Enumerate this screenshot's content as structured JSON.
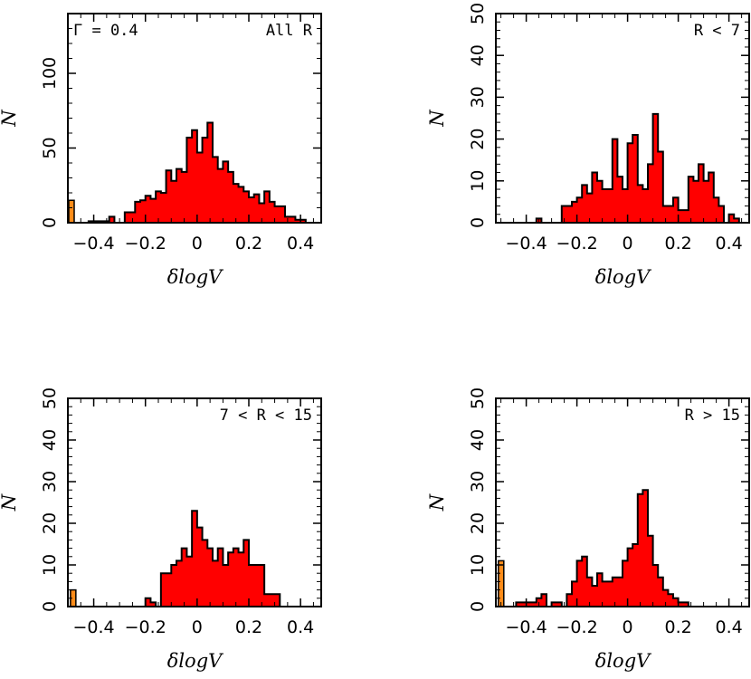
{
  "colors": {
    "bar_fill": "#ff0000",
    "outlier_fill": "#ff8c1a",
    "stroke": "#000000",
    "background": "#ffffff"
  },
  "chart_data": [
    {
      "type": "bar",
      "panel": "top-left",
      "annotation_left": "Γ = 0.4",
      "annotation_right": "All R",
      "xlabel": "δlogV",
      "ylabel": "N",
      "xlim": [
        -0.5,
        0.48
      ],
      "ylim": [
        0,
        140
      ],
      "xticks": [
        -0.4,
        -0.2,
        0,
        0.2,
        0.4
      ],
      "xtick_labels": [
        "−0.4",
        "−0.2",
        "0",
        "0.2",
        "0.4"
      ],
      "yticks": [
        0,
        50,
        100
      ],
      "ytick_labels": [
        "0",
        "50",
        "100"
      ],
      "bin_width": 0.02,
      "bins_start": [
        -0.44,
        -0.42,
        -0.4,
        -0.38,
        -0.36,
        -0.34,
        -0.32,
        -0.3,
        -0.28,
        -0.26,
        -0.24,
        -0.22,
        -0.2,
        -0.18,
        -0.16,
        -0.14,
        -0.12,
        -0.1,
        -0.08,
        -0.06,
        -0.04,
        -0.02,
        0.0,
        0.02,
        0.04,
        0.06,
        0.08,
        0.1,
        0.12,
        0.14,
        0.16,
        0.18,
        0.2,
        0.22,
        0.24,
        0.26,
        0.28,
        0.3,
        0.32,
        0.34,
        0.36,
        0.38,
        0.4,
        0.42,
        0.44
      ],
      "counts": [
        0,
        1,
        1,
        1,
        1,
        4,
        0,
        0,
        7,
        7,
        14,
        15,
        18,
        16,
        21,
        20,
        35,
        28,
        36,
        34,
        57,
        62,
        47,
        57,
        67,
        44,
        36,
        41,
        34,
        26,
        24,
        21,
        17,
        19,
        13,
        21,
        14,
        11,
        11,
        4,
        4,
        2,
        2,
        0,
        0
      ],
      "outlier_bin": {
        "x_start": -0.5,
        "width": 0.016,
        "count": 15
      }
    },
    {
      "type": "bar",
      "panel": "top-right",
      "annotation_right": "R < 7",
      "xlabel": "δlogV",
      "ylabel": "N",
      "xlim": [
        -0.52,
        0.48
      ],
      "ylim": [
        0,
        50
      ],
      "xticks": [
        -0.4,
        -0.2,
        0,
        0.2,
        0.4
      ],
      "xtick_labels": [
        "−0.4",
        "−0.2",
        "0",
        "0.2",
        "0.4"
      ],
      "yticks": [
        0,
        10,
        20,
        30,
        40,
        50
      ],
      "ytick_labels": [
        "0",
        "10",
        "20",
        "30",
        "40",
        "50"
      ],
      "bin_width": 0.02,
      "bins_start": [
        -0.36,
        -0.34,
        -0.32,
        -0.3,
        -0.28,
        -0.26,
        -0.24,
        -0.22,
        -0.2,
        -0.18,
        -0.16,
        -0.14,
        -0.12,
        -0.1,
        -0.08,
        -0.06,
        -0.04,
        -0.02,
        0.0,
        0.02,
        0.04,
        0.06,
        0.08,
        0.1,
        0.12,
        0.14,
        0.16,
        0.18,
        0.2,
        0.22,
        0.24,
        0.26,
        0.28,
        0.3,
        0.32,
        0.34,
        0.36,
        0.38,
        0.4,
        0.42,
        0.44,
        0.46
      ],
      "counts": [
        1,
        0,
        0,
        0,
        0,
        4,
        4,
        5,
        6,
        9,
        7,
        12,
        10,
        8,
        8,
        20,
        11,
        8,
        19,
        21,
        9,
        8,
        14,
        26,
        17,
        4,
        4,
        6,
        3,
        3,
        11,
        10,
        14,
        10,
        12,
        6,
        4,
        0,
        2,
        1,
        0,
        0
      ],
      "outlier_bin": null
    },
    {
      "type": "bar",
      "panel": "bottom-left",
      "annotation_right": "7 < R < 15",
      "xlabel": "δlogV",
      "ylabel": "N",
      "xlim": [
        -0.5,
        0.48
      ],
      "ylim": [
        0,
        50
      ],
      "xticks": [
        -0.4,
        -0.2,
        0,
        0.2,
        0.4
      ],
      "xtick_labels": [
        "−0.4",
        "−0.2",
        "0",
        "0.2",
        "0.4"
      ],
      "yticks": [
        0,
        10,
        20,
        30,
        40,
        50
      ],
      "ytick_labels": [
        "0",
        "10",
        "20",
        "30",
        "40",
        "50"
      ],
      "bin_width": 0.02,
      "bins_start": [
        -0.2,
        -0.18,
        -0.16,
        -0.14,
        -0.12,
        -0.1,
        -0.08,
        -0.06,
        -0.04,
        -0.02,
        0.0,
        0.02,
        0.04,
        0.06,
        0.08,
        0.1,
        0.12,
        0.14,
        0.16,
        0.18,
        0.2,
        0.22,
        0.24,
        0.26,
        0.28,
        0.3,
        0.32,
        0.34
      ],
      "counts": [
        2,
        1,
        0,
        8,
        8,
        10,
        11,
        14,
        12,
        23,
        19,
        16,
        14,
        11,
        14,
        10,
        13,
        14,
        13,
        16,
        10,
        10,
        10,
        3,
        3,
        3,
        0,
        0
      ],
      "outlier_bin": {
        "x_start": -0.49,
        "width": 0.016,
        "count": 4
      }
    },
    {
      "type": "bar",
      "panel": "bottom-right",
      "annotation_right": "R > 15",
      "xlabel": "δlogV",
      "ylabel": "N",
      "xlim": [
        -0.52,
        0.48
      ],
      "ylim": [
        0,
        50
      ],
      "xticks": [
        -0.4,
        -0.2,
        0,
        0.2,
        0.4
      ],
      "xtick_labels": [
        "−0.4",
        "−0.2",
        "0",
        "0.2",
        "0.4"
      ],
      "yticks": [
        0,
        10,
        20,
        30,
        40,
        50
      ],
      "ytick_labels": [
        "0",
        "10",
        "20",
        "30",
        "40",
        "50"
      ],
      "bin_width": 0.02,
      "bins_start": [
        -0.44,
        -0.42,
        -0.4,
        -0.38,
        -0.36,
        -0.34,
        -0.32,
        -0.3,
        -0.28,
        -0.26,
        -0.24,
        -0.22,
        -0.2,
        -0.18,
        -0.16,
        -0.14,
        -0.12,
        -0.1,
        -0.08,
        -0.06,
        -0.04,
        -0.02,
        0.0,
        0.02,
        0.04,
        0.06,
        0.08,
        0.1,
        0.12,
        0.14,
        0.16,
        0.18,
        0.2,
        0.22,
        0.24,
        0.26,
        0.28,
        0.3
      ],
      "counts": [
        1,
        1,
        1,
        1,
        2,
        3,
        0,
        1,
        1,
        0,
        3,
        6,
        11,
        12,
        7,
        5,
        8,
        6,
        6,
        7,
        7,
        11,
        14,
        15,
        27,
        28,
        17,
        10,
        7,
        4,
        3,
        2,
        1,
        1,
        0,
        0,
        0,
        0
      ],
      "outlier_bin": {
        "x_start": -0.51,
        "width": 0.02,
        "count": 11
      }
    }
  ]
}
